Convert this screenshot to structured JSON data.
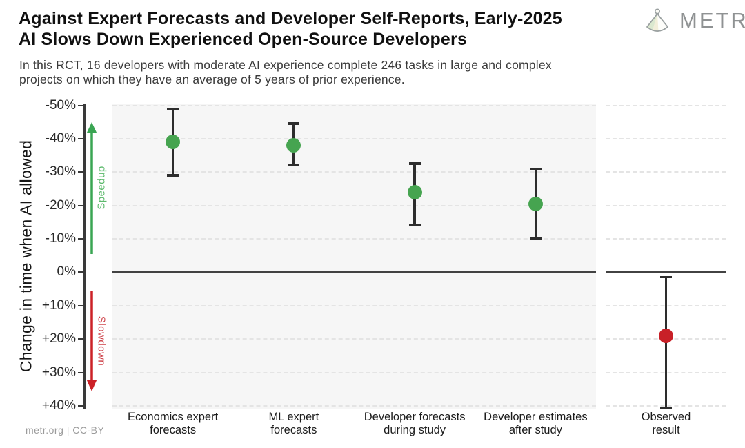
{
  "header": {
    "title": "Against Expert Forecasts and Developer Self-Reports, Early-2025\nAI Slows Down Experienced Open-Source Developers",
    "subtitle": "In this RCT, 16 developers with moderate AI experience complete 246 tasks in large and complex\nprojects on which they have an average of 5 years of prior experience.",
    "logo_text": "METR"
  },
  "footer": {
    "credit": "metr.org  |  CC-BY"
  },
  "chart_data": {
    "type": "scatter",
    "title": "Against Expert Forecasts and Developer Self-Reports, Early-2025 AI Slows Down Experienced Open-Source Developers",
    "subtitle": "In this RCT, 16 developers with moderate AI experience complete 246 tasks in large and complex projects on which they have an average of 5 years of prior experience.",
    "xlabel": "",
    "ylabel": "Change in time when AI allowed",
    "ylim": [
      -50,
      40
    ],
    "y_axis_inverted_note": "negative (speedup) values at top, positive (slowdown) at bottom",
    "grid": true,
    "y_ticks": [
      {
        "value": -50,
        "label": "-50%"
      },
      {
        "value": -40,
        "label": "-40%"
      },
      {
        "value": -30,
        "label": "-30%"
      },
      {
        "value": -20,
        "label": "-20%"
      },
      {
        "value": -10,
        "label": "-10%"
      },
      {
        "value": 0,
        "label": "0%"
      },
      {
        "value": 10,
        "label": "+10%"
      },
      {
        "value": 20,
        "label": "+20%"
      },
      {
        "value": 30,
        "label": "+30%"
      },
      {
        "value": 40,
        "label": "+40%"
      }
    ],
    "annotations": {
      "speedup": "Speedup",
      "slowdown": "Slowdown"
    },
    "zero_line": 0,
    "x_labels": [
      "Economics expert\nforecasts",
      "ML expert\nforecasts",
      "Developer forecasts\nduring study",
      "Developer estimates\nafter study",
      "Observed\nresult"
    ],
    "points": [
      {
        "category": "Economics expert forecasts",
        "mean": -39,
        "ci": [
          -49,
          -29
        ],
        "color": "green",
        "panel": "main"
      },
      {
        "category": "ML expert forecasts",
        "mean": -38,
        "ci": [
          -44.5,
          -32
        ],
        "color": "green",
        "panel": "main"
      },
      {
        "category": "Developer forecasts during study",
        "mean": -24,
        "ci": [
          -32.5,
          -14
        ],
        "color": "green",
        "panel": "main"
      },
      {
        "category": "Developer estimates after study",
        "mean": -20.5,
        "ci": [
          -31,
          -10
        ],
        "color": "green",
        "panel": "main"
      },
      {
        "category": "Observed result",
        "mean": 19,
        "ci": [
          1.5,
          40.5
        ],
        "color": "red",
        "panel": "observed"
      }
    ],
    "colors": {
      "green": "#46a450",
      "red": "#c82027",
      "axis": "#3a3a3a",
      "error_bar": "#2d2d2d",
      "grid": "#e4e4e4",
      "panel_bg": "#f6f6f6",
      "speedup_arrow": "#3aa553",
      "slowdown_arrow": "#cc2127"
    }
  }
}
